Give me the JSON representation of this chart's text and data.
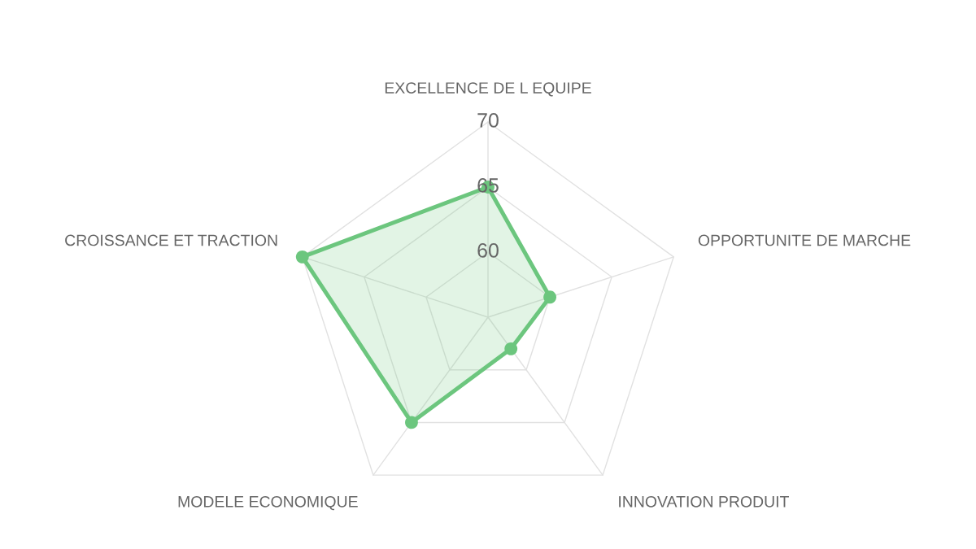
{
  "chart_data": {
    "type": "radar",
    "categories": [
      "EXCELLENCE DE L EQUIPE",
      "OPPORTUNITE DE MARCHE",
      "INNOVATION PRODUIT",
      "MODELE ECONOMIQUE",
      "CROISSANCE ET TRACTION"
    ],
    "series": [
      {
        "color": "#6cc67e",
        "values": [
          65,
          60,
          58,
          65,
          70
        ]
      }
    ],
    "ylim": [
      55,
      70
    ],
    "yticks": [
      60,
      65,
      70
    ],
    "grid": true,
    "marker": "circle"
  }
}
